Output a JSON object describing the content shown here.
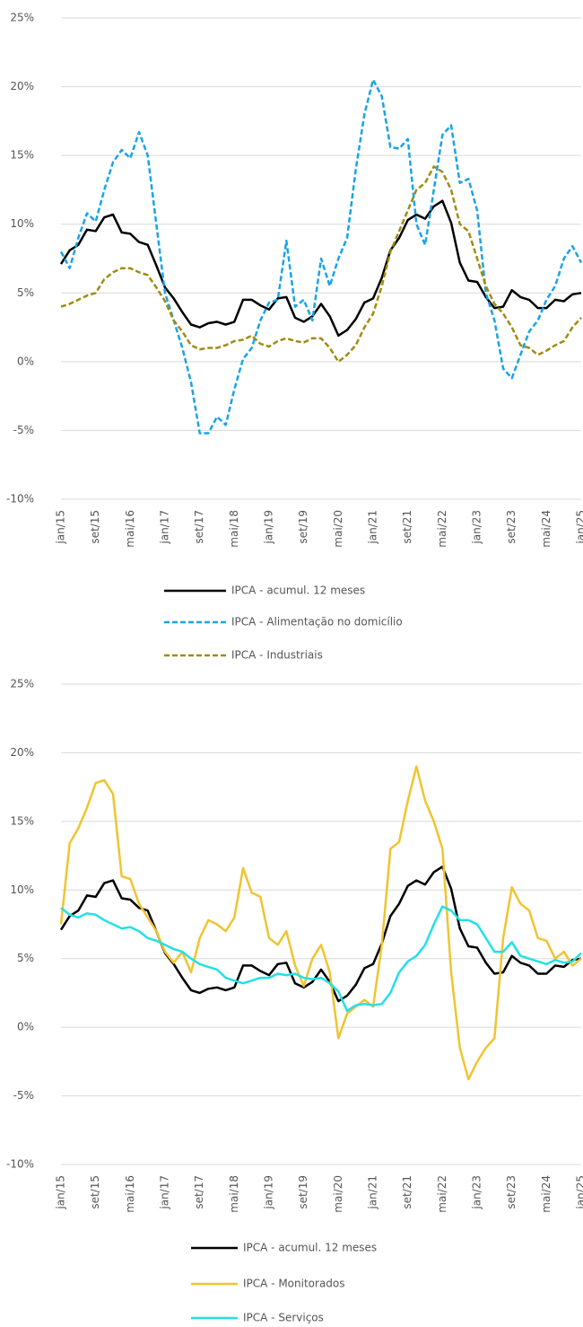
{
  "chart_data": [
    {
      "type": "line",
      "categories": [
        "jan/15",
        null,
        null,
        null,
        "set/15",
        null,
        null,
        null,
        "mai/16",
        null,
        null,
        null,
        "jan/17",
        null,
        null,
        null,
        "set/17",
        null,
        null,
        null,
        "mai/18",
        null,
        null,
        null,
        "jan/19",
        null,
        null,
        null,
        "set/19",
        null,
        null,
        null,
        "mai/20",
        null,
        null,
        null,
        "jan/21",
        null,
        null,
        null,
        "set/21",
        null,
        null,
        null,
        "mai/22",
        null,
        null,
        null,
        "jan/23",
        null,
        null,
        null,
        "set/23",
        null,
        null,
        null,
        "mai/24",
        null,
        null,
        null,
        "jan/25"
      ],
      "ylim": [
        -10,
        25
      ],
      "yticks": [
        {
          "value": -10,
          "label": "-10%"
        },
        {
          "value": -5,
          "label": "-5%"
        },
        {
          "value": 0,
          "label": "0%"
        },
        {
          "value": 5,
          "label": "5%"
        },
        {
          "value": 10,
          "label": "10%"
        },
        {
          "value": 15,
          "label": "15%"
        },
        {
          "value": 20,
          "label": "20%"
        },
        {
          "value": 25,
          "label": "25%"
        }
      ],
      "grid": true,
      "series": [
        {
          "name": "IPCA - acumul. 12 meses",
          "color": "#000000",
          "style": "solid",
          "values": [
            7.1,
            8.1,
            8.5,
            9.6,
            9.5,
            10.5,
            10.7,
            9.4,
            9.3,
            8.7,
            8.5,
            7.0,
            5.4,
            4.6,
            3.6,
            2.7,
            2.5,
            2.8,
            2.9,
            2.7,
            2.9,
            4.5,
            4.5,
            4.1,
            3.8,
            4.6,
            4.7,
            3.2,
            2.9,
            3.3,
            4.2,
            3.3,
            1.9,
            2.3,
            3.1,
            4.3,
            4.6,
            6.1,
            8.1,
            9.0,
            10.3,
            10.7,
            10.4,
            11.3,
            11.7,
            10.1,
            7.2,
            5.9,
            5.8,
            4.7,
            3.9,
            4.0,
            5.2,
            4.7,
            4.5,
            3.9,
            3.9,
            4.5,
            4.4,
            4.9,
            5.0
          ]
        },
        {
          "name": "IPCA - Alimentação no domicílio",
          "color": "#1aa3e8",
          "style": "dashed",
          "values": [
            8.0,
            6.8,
            9.0,
            10.8,
            10.2,
            12.5,
            14.5,
            15.4,
            14.8,
            16.7,
            15.0,
            10.0,
            5.0,
            3.0,
            1.0,
            -1.5,
            -5.2,
            -5.2,
            -4.0,
            -4.6,
            -2.0,
            0.2,
            1.0,
            3.0,
            4.3,
            4.5,
            8.8,
            4.0,
            4.5,
            3.0,
            7.5,
            5.5,
            7.5,
            9.0,
            14.0,
            18.0,
            20.5,
            19.3,
            15.6,
            15.5,
            16.2,
            10.0,
            8.5,
            12.5,
            16.5,
            17.2,
            13.0,
            13.3,
            11.0,
            5.0,
            3.0,
            -0.5,
            -1.2,
            0.5,
            2.2,
            3.0,
            4.5,
            5.5,
            7.5,
            8.4,
            7.2
          ]
        },
        {
          "name": "IPCA - Industriais",
          "color": "#a08c10",
          "style": "dashed",
          "values": [
            4.0,
            4.2,
            4.5,
            4.8,
            5.0,
            6.0,
            6.5,
            6.8,
            6.8,
            6.5,
            6.3,
            5.4,
            4.4,
            3.0,
            2.2,
            1.2,
            0.9,
            1.0,
            1.0,
            1.2,
            1.5,
            1.6,
            1.9,
            1.3,
            1.1,
            1.5,
            1.7,
            1.5,
            1.4,
            1.7,
            1.7,
            1.0,
            0.0,
            0.5,
            1.2,
            2.5,
            3.5,
            5.5,
            8.0,
            9.5,
            11.0,
            12.5,
            13.0,
            14.2,
            13.8,
            12.5,
            10.0,
            9.5,
            7.5,
            5.5,
            4.2,
            3.5,
            2.5,
            1.2,
            1.0,
            0.5,
            0.8,
            1.2,
            1.5,
            2.5,
            3.2
          ]
        }
      ]
    },
    {
      "type": "line",
      "categories": [
        "jan/15",
        null,
        null,
        null,
        "set/15",
        null,
        null,
        null,
        "mai/16",
        null,
        null,
        null,
        "jan/17",
        null,
        null,
        null,
        "set/17",
        null,
        null,
        null,
        "mai/18",
        null,
        null,
        null,
        "jan/19",
        null,
        null,
        null,
        "set/19",
        null,
        null,
        null,
        "mai/20",
        null,
        null,
        null,
        "jan/21",
        null,
        null,
        null,
        "set/21",
        null,
        null,
        null,
        "mai/22",
        null,
        null,
        null,
        "jan/23",
        null,
        null,
        null,
        "set/23",
        null,
        null,
        null,
        "mai/24",
        null,
        null,
        null,
        "jan/25"
      ],
      "ylim": [
        -10,
        25
      ],
      "yticks": [
        {
          "value": -10,
          "label": "-10%"
        },
        {
          "value": -5,
          "label": "-5%"
        },
        {
          "value": 0,
          "label": "0%"
        },
        {
          "value": 5,
          "label": "5%"
        },
        {
          "value": 10,
          "label": "10%"
        },
        {
          "value": 15,
          "label": "15%"
        },
        {
          "value": 20,
          "label": "20%"
        },
        {
          "value": 25,
          "label": "25%"
        }
      ],
      "grid": true,
      "series": [
        {
          "name": "IPCA - acumul. 12 meses",
          "color": "#000000",
          "style": "solid",
          "values": [
            7.1,
            8.1,
            8.5,
            9.6,
            9.5,
            10.5,
            10.7,
            9.4,
            9.3,
            8.7,
            8.5,
            7.0,
            5.4,
            4.6,
            3.6,
            2.7,
            2.5,
            2.8,
            2.9,
            2.7,
            2.9,
            4.5,
            4.5,
            4.1,
            3.8,
            4.6,
            4.7,
            3.2,
            2.9,
            3.3,
            4.2,
            3.3,
            1.9,
            2.3,
            3.1,
            4.3,
            4.6,
            6.1,
            8.1,
            9.0,
            10.3,
            10.7,
            10.4,
            11.3,
            11.7,
            10.1,
            7.2,
            5.9,
            5.8,
            4.7,
            3.9,
            4.0,
            5.2,
            4.7,
            4.5,
            3.9,
            3.9,
            4.5,
            4.4,
            4.9,
            5.0
          ]
        },
        {
          "name": "IPCA - Monitorados",
          "color": "#f0c430",
          "style": "solid",
          "values": [
            7.5,
            13.4,
            14.5,
            16.0,
            17.8,
            18.0,
            17.0,
            11.0,
            10.8,
            9.0,
            8.0,
            7.0,
            5.5,
            4.7,
            5.5,
            4.0,
            6.5,
            7.8,
            7.5,
            7.0,
            8.0,
            11.6,
            9.8,
            9.5,
            6.5,
            6.0,
            7.0,
            4.5,
            3.0,
            5.0,
            6.0,
            4.0,
            -0.8,
            1.0,
            1.5,
            2.0,
            1.5,
            6.0,
            13.0,
            13.5,
            16.5,
            19.0,
            16.5,
            15.0,
            13.0,
            4.0,
            -1.5,
            -3.8,
            -2.5,
            -1.5,
            -0.8,
            6.5,
            10.2,
            9.0,
            8.5,
            6.5,
            6.3,
            5.0,
            5.5,
            4.5,
            5.0
          ]
        },
        {
          "name": "IPCA - Serviços",
          "color": "#22e0e8",
          "style": "solid",
          "values": [
            8.7,
            8.2,
            8.0,
            8.3,
            8.2,
            7.8,
            7.5,
            7.2,
            7.3,
            7.0,
            6.5,
            6.3,
            6.0,
            5.7,
            5.5,
            5.0,
            4.6,
            4.4,
            4.2,
            3.6,
            3.4,
            3.2,
            3.4,
            3.6,
            3.6,
            3.9,
            3.8,
            3.9,
            3.6,
            3.5,
            3.6,
            3.2,
            2.6,
            1.2,
            1.6,
            1.7,
            1.6,
            1.7,
            2.5,
            4.0,
            4.8,
            5.2,
            6.0,
            7.5,
            8.8,
            8.5,
            7.8,
            7.8,
            7.5,
            6.5,
            5.5,
            5.5,
            6.2,
            5.2,
            5.0,
            4.8,
            4.6,
            4.9,
            4.7,
            4.8,
            5.4
          ]
        }
      ]
    }
  ]
}
